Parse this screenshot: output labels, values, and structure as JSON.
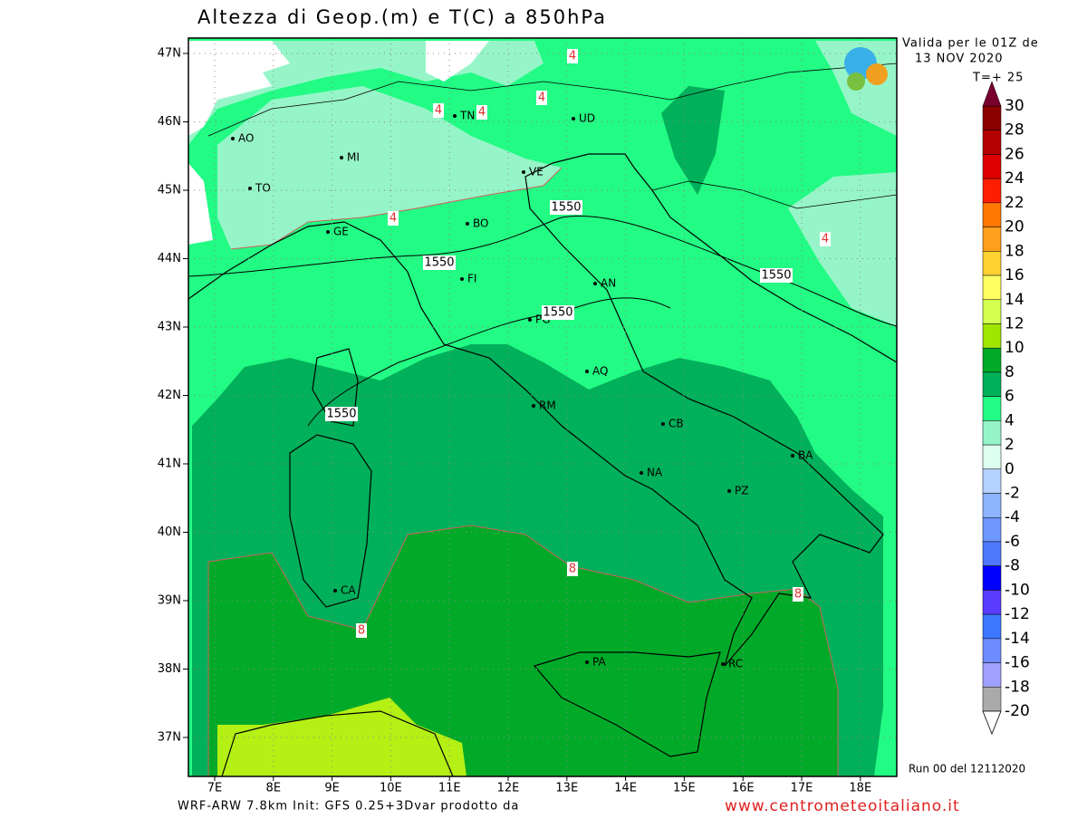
{
  "header": {
    "title": "Altezza di Geop.(m) e T(C) a 850hPa",
    "valid_line1": "Valida per le 01Z de",
    "valid_line2": "13 NOV 2020",
    "forecast_step": "T=+ 25",
    "run": "Run 00 del 12112020"
  },
  "footer": {
    "model": "WRF-ARW 7.8km Init: GFS 0.25+3Dvar prodotto da",
    "site": "www.centrometeoitaliano.it"
  },
  "map": {
    "lat_labels": [
      "47N",
      "46N",
      "45N",
      "44N",
      "43N",
      "42N",
      "41N",
      "40N",
      "39N",
      "38N",
      "37N"
    ],
    "lon_labels": [
      "7E",
      "8E",
      "9E",
      "10E",
      "11E",
      "12E",
      "13E",
      "14E",
      "15E",
      "16E",
      "17E",
      "18E"
    ],
    "cities": [
      "AO",
      "MI",
      "TO",
      "TN",
      "UD",
      "VE",
      "GE",
      "BO",
      "FI",
      "AN",
      "PG",
      "AQ",
      "RM",
      "CB",
      "NA",
      "PZ",
      "BA",
      "CA",
      "PA",
      "RC"
    ],
    "height_labels": [
      "1550",
      "1550",
      "1550",
      "1550",
      "1550"
    ],
    "temp_labels": [
      "4",
      "4",
      "4",
      "4",
      "4",
      "4",
      "8",
      "8",
      "8"
    ]
  },
  "legend": {
    "labels": [
      "30",
      "28",
      "26",
      "24",
      "22",
      "20",
      "18",
      "16",
      "14",
      "12",
      "10",
      "8",
      "6",
      "4",
      "2",
      "0",
      "-2",
      "-4",
      "-6",
      "-8",
      "-10",
      "-12",
      "-14",
      "-16",
      "-18",
      "-20"
    ],
    "colors": [
      "#8c0000",
      "#b40000",
      "#dc0000",
      "#ff1e00",
      "#ff7800",
      "#ffa01e",
      "#ffd232",
      "#ffff64",
      "#d2ff50",
      "#a0e600",
      "#00aa28",
      "#00b05a",
      "#22fb84",
      "#96f5c8",
      "#dcfff0",
      "#b4d2ff",
      "#8cb4ff",
      "#6e96ff",
      "#5078ff",
      "#0000ff",
      "#5a3cff",
      "#3c78ff",
      "#6e8cff",
      "#a0a0ff",
      "#aaaaaa"
    ],
    "top_color": "#7a0030"
  }
}
